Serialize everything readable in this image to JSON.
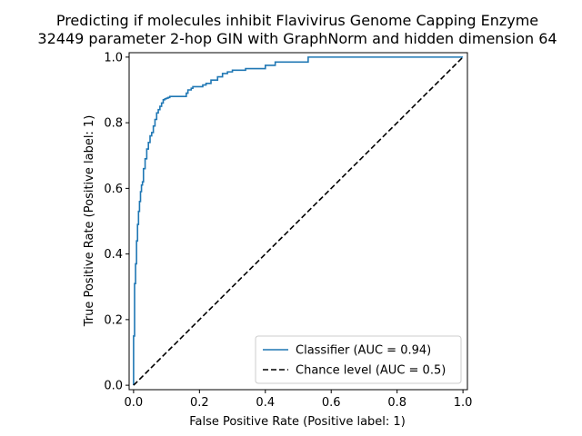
{
  "chart_data": {
    "type": "line",
    "title": "Predicting if molecules inhibit Flavivirus Genome Capping Enzyme",
    "subtitle": "32449 parameter 2-hop GIN with GraphNorm and hidden dimension 64",
    "xlabel": "False Positive Rate (Positive label: 1)",
    "ylabel": "True Positive Rate (Positive label: 1)",
    "xlim": [
      0,
      1
    ],
    "ylim": [
      0,
      1
    ],
    "xticks": [
      "0.0",
      "0.2",
      "0.4",
      "0.6",
      "0.8",
      "1.0"
    ],
    "yticks": [
      "0.0",
      "0.2",
      "0.4",
      "0.6",
      "0.8",
      "1.0"
    ],
    "grid": false,
    "legend_position": "lower-right",
    "series": [
      {
        "name": "Classifier (AUC = 0.94)",
        "color": "#1f77b4",
        "style": "solid",
        "x": [
          0.0,
          0.0,
          0.003,
          0.003,
          0.006,
          0.006,
          0.009,
          0.009,
          0.012,
          0.012,
          0.015,
          0.015,
          0.018,
          0.018,
          0.021,
          0.021,
          0.024,
          0.024,
          0.027,
          0.027,
          0.03,
          0.03,
          0.035,
          0.035,
          0.04,
          0.04,
          0.045,
          0.045,
          0.05,
          0.05,
          0.055,
          0.055,
          0.06,
          0.06,
          0.065,
          0.065,
          0.07,
          0.07,
          0.075,
          0.075,
          0.08,
          0.08,
          0.085,
          0.085,
          0.09,
          0.09,
          0.095,
          0.095,
          0.1,
          0.1,
          0.105,
          0.105,
          0.11,
          0.11,
          0.16,
          0.16,
          0.165,
          0.165,
          0.175,
          0.175,
          0.18,
          0.18,
          0.21,
          0.21,
          0.22,
          0.22,
          0.235,
          0.235,
          0.255,
          0.255,
          0.27,
          0.27,
          0.285,
          0.285,
          0.3,
          0.3,
          0.34,
          0.34,
          0.4,
          0.4,
          0.43,
          0.43,
          0.53,
          0.53,
          1.0
        ],
        "y": [
          0.0,
          0.15,
          0.15,
          0.31,
          0.31,
          0.37,
          0.37,
          0.44,
          0.44,
          0.49,
          0.49,
          0.53,
          0.53,
          0.56,
          0.56,
          0.59,
          0.59,
          0.61,
          0.61,
          0.62,
          0.62,
          0.66,
          0.66,
          0.69,
          0.69,
          0.72,
          0.72,
          0.74,
          0.74,
          0.76,
          0.76,
          0.77,
          0.77,
          0.79,
          0.79,
          0.81,
          0.81,
          0.83,
          0.83,
          0.84,
          0.84,
          0.85,
          0.85,
          0.86,
          0.86,
          0.87,
          0.87,
          0.873,
          0.873,
          0.875,
          0.875,
          0.877,
          0.877,
          0.88,
          0.88,
          0.89,
          0.89,
          0.9,
          0.9,
          0.905,
          0.905,
          0.91,
          0.91,
          0.915,
          0.915,
          0.92,
          0.92,
          0.93,
          0.93,
          0.94,
          0.94,
          0.95,
          0.95,
          0.955,
          0.955,
          0.96,
          0.96,
          0.965,
          0.965,
          0.975,
          0.975,
          0.985,
          0.985,
          1.0,
          1.0
        ]
      },
      {
        "name": "Chance level (AUC = 0.5)",
        "color": "#000000",
        "style": "dashed",
        "x": [
          0,
          1
        ],
        "y": [
          0,
          1
        ]
      }
    ]
  }
}
